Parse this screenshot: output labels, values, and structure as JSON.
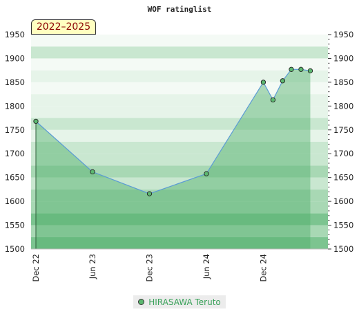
{
  "chart_data": {
    "type": "area",
    "title": "WOF ratinglist",
    "period_label": "2022–2025",
    "ylim": [
      1500,
      1950
    ],
    "yticks": [
      1500,
      1550,
      1600,
      1650,
      1700,
      1750,
      1800,
      1850,
      1900,
      1950
    ],
    "x_range": [
      "2022-12-01",
      "2025-06-20"
    ],
    "xticks": [
      {
        "date": "2022-12-01",
        "label": "Dec 22"
      },
      {
        "date": "2023-06-01",
        "label": "Jun 23"
      },
      {
        "date": "2023-12-01",
        "label": "Dec 23"
      },
      {
        "date": "2024-06-01",
        "label": "Jun 24"
      },
      {
        "date": "2024-12-01",
        "label": "Dec 24"
      }
    ],
    "series": [
      {
        "name": "HIRASAWA Teruto",
        "points": [
          {
            "date": "2022-12-01",
            "value": 1768
          },
          {
            "date": "2023-06-01",
            "value": 1662
          },
          {
            "date": "2023-12-01",
            "value": 1616
          },
          {
            "date": "2024-06-01",
            "value": 1658
          },
          {
            "date": "2024-12-01",
            "value": 1850
          },
          {
            "date": "2025-01-01",
            "value": 1813
          },
          {
            "date": "2025-02-01",
            "value": 1853
          },
          {
            "date": "2025-03-01",
            "value": 1877
          },
          {
            "date": "2025-04-01",
            "value": 1877
          },
          {
            "date": "2025-05-01",
            "value": 1874
          }
        ]
      }
    ],
    "legend": {
      "position": "bottom"
    },
    "grid": true
  },
  "colors": {
    "band_dark": "#7cc490",
    "band_mid": "#a8d8b4",
    "band_light": "#c9e7d0",
    "band_pale": "#e6f4e9",
    "band_white": "#f4faf5",
    "area_fill": "#4fb06a",
    "line": "#5b9bd5",
    "marker": "#5cb870",
    "legend_text": "#3aa25a"
  }
}
